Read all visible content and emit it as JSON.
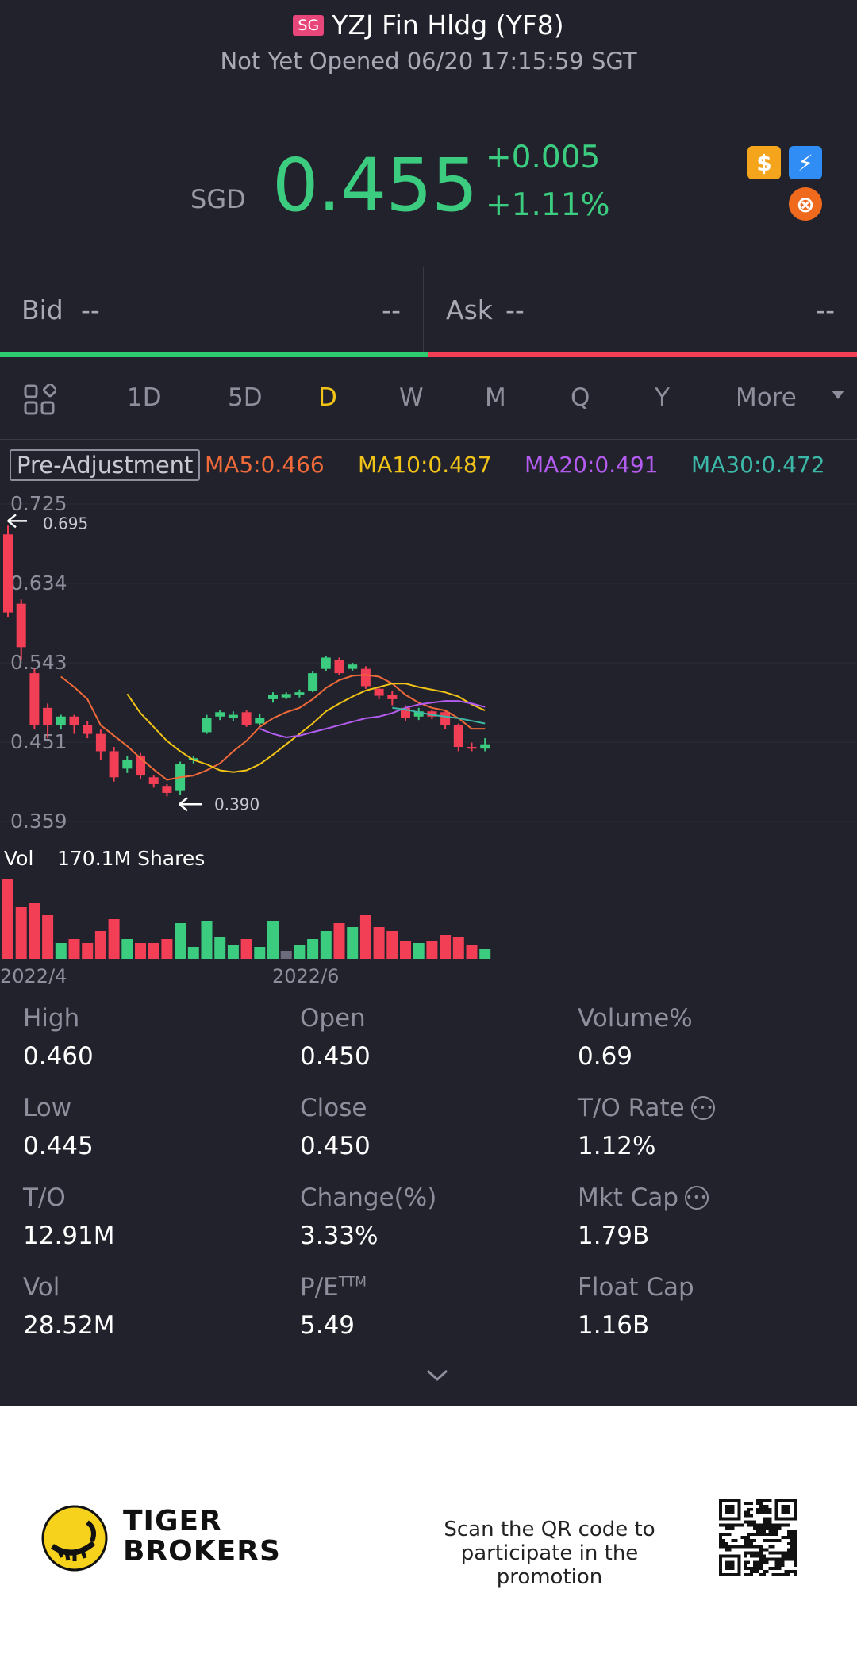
{
  "header": {
    "market_badge": "SG",
    "title": "YZJ Fin Hldg (YF8)",
    "status": "Not Yet Opened 06/20 17:15:59 SGT"
  },
  "quote": {
    "currency": "SGD",
    "price": "0.455",
    "change": "+0.005",
    "change_pct": "+1.11%",
    "up_color": "#3ccc7f",
    "down_color": "#f23f55"
  },
  "badges": {
    "dollar": "$",
    "flash": "⚡",
    "orange": "⊗"
  },
  "bidask": {
    "bid_label": "Bid",
    "bid_value": "--",
    "bid_size": "--",
    "ask_label": "Ask",
    "ask_value": "--",
    "ask_size": "--"
  },
  "periods": {
    "items": [
      "1D",
      "5D",
      "D",
      "W",
      "M",
      "Q",
      "Y",
      "More"
    ],
    "active": "D"
  },
  "indicators": {
    "adjustment": "Pre-Adjustment",
    "ma5": "MA5:0.466",
    "ma10": "MA10:0.487",
    "ma20": "MA20:0.491",
    "ma30": "MA30:0.472",
    "ma5_color": "#f06a3a",
    "ma10_color": "#f2c417",
    "ma20_color": "#b45cf0",
    "ma30_color": "#3cb8a8"
  },
  "chart_data": {
    "type": "candlestick",
    "y_ticks": [
      "0.725",
      "0.634",
      "0.543",
      "0.451",
      "0.359"
    ],
    "ylim": [
      0.359,
      0.725
    ],
    "high_marker": "0.695",
    "low_marker": "0.390",
    "x_labels": [
      "2022/4",
      "2022/6"
    ],
    "volume_label": "Vol",
    "volume_value": "170.1M Shares",
    "candles": [
      {
        "o": 0.69,
        "c": 0.6,
        "h": 0.7,
        "l": 0.595
      },
      {
        "o": 0.61,
        "c": 0.56,
        "h": 0.615,
        "l": 0.545
      },
      {
        "o": 0.53,
        "c": 0.47,
        "h": 0.535,
        "l": 0.465
      },
      {
        "o": 0.49,
        "c": 0.47,
        "h": 0.495,
        "l": 0.455
      },
      {
        "o": 0.47,
        "c": 0.48,
        "h": 0.482,
        "l": 0.465
      },
      {
        "o": 0.48,
        "c": 0.47,
        "h": 0.482,
        "l": 0.46
      },
      {
        "o": 0.47,
        "c": 0.46,
        "h": 0.475,
        "l": 0.455
      },
      {
        "o": 0.46,
        "c": 0.44,
        "h": 0.465,
        "l": 0.43
      },
      {
        "o": 0.44,
        "c": 0.41,
        "h": 0.445,
        "l": 0.405
      },
      {
        "o": 0.42,
        "c": 0.43,
        "h": 0.435,
        "l": 0.415
      },
      {
        "o": 0.435,
        "c": 0.412,
        "h": 0.438,
        "l": 0.408
      },
      {
        "o": 0.41,
        "c": 0.402,
        "h": 0.412,
        "l": 0.398
      },
      {
        "o": 0.4,
        "c": 0.392,
        "h": 0.402,
        "l": 0.388
      },
      {
        "o": 0.395,
        "c": 0.425,
        "h": 0.428,
        "l": 0.39
      },
      {
        "o": 0.43,
        "c": 0.432,
        "h": 0.434,
        "l": 0.426
      },
      {
        "o": 0.462,
        "c": 0.478,
        "h": 0.482,
        "l": 0.46
      },
      {
        "o": 0.48,
        "c": 0.485,
        "h": 0.487,
        "l": 0.476
      },
      {
        "o": 0.478,
        "c": 0.482,
        "h": 0.486,
        "l": 0.475
      },
      {
        "o": 0.485,
        "c": 0.47,
        "h": 0.487,
        "l": 0.468
      },
      {
        "o": 0.472,
        "c": 0.478,
        "h": 0.483,
        "l": 0.47
      },
      {
        "o": 0.5,
        "c": 0.505,
        "h": 0.508,
        "l": 0.496
      },
      {
        "o": 0.502,
        "c": 0.506,
        "h": 0.508,
        "l": 0.5
      },
      {
        "o": 0.505,
        "c": 0.508,
        "h": 0.511,
        "l": 0.502
      },
      {
        "o": 0.51,
        "c": 0.53,
        "h": 0.532,
        "l": 0.508
      },
      {
        "o": 0.535,
        "c": 0.548,
        "h": 0.55,
        "l": 0.532
      },
      {
        "o": 0.545,
        "c": 0.53,
        "h": 0.548,
        "l": 0.528
      },
      {
        "o": 0.535,
        "c": 0.54,
        "h": 0.542,
        "l": 0.533
      },
      {
        "o": 0.535,
        "c": 0.515,
        "h": 0.538,
        "l": 0.512
      },
      {
        "o": 0.512,
        "c": 0.504,
        "h": 0.515,
        "l": 0.5
      },
      {
        "o": 0.505,
        "c": 0.5,
        "h": 0.51,
        "l": 0.493
      },
      {
        "o": 0.49,
        "c": 0.478,
        "h": 0.493,
        "l": 0.475
      },
      {
        "o": 0.48,
        "c": 0.486,
        "h": 0.49,
        "l": 0.476
      },
      {
        "o": 0.486,
        "c": 0.48,
        "h": 0.488,
        "l": 0.477
      },
      {
        "o": 0.485,
        "c": 0.47,
        "h": 0.487,
        "l": 0.466
      },
      {
        "o": 0.47,
        "c": 0.445,
        "h": 0.472,
        "l": 0.44
      },
      {
        "o": 0.445,
        "c": 0.443,
        "h": 0.45,
        "l": 0.44
      },
      {
        "o": 0.443,
        "c": 0.448,
        "h": 0.455,
        "l": 0.44
      }
    ],
    "ma_lines": {
      "ma5": [
        null,
        null,
        null,
        null,
        0.526,
        0.514,
        0.5,
        0.47,
        0.458,
        0.446,
        0.432,
        0.419,
        0.407,
        0.41,
        0.412,
        0.418,
        0.426,
        0.44,
        0.452,
        0.468,
        0.478,
        0.485,
        0.49,
        0.5,
        0.513,
        0.522,
        0.527,
        0.528,
        0.526,
        0.518,
        0.505,
        0.496,
        0.49,
        0.487,
        0.478,
        0.466,
        0.466
      ],
      "ma10": [
        null,
        null,
        null,
        null,
        null,
        null,
        null,
        null,
        null,
        0.506,
        0.484,
        0.468,
        0.452,
        0.44,
        0.43,
        0.425,
        0.418,
        0.416,
        0.418,
        0.425,
        0.436,
        0.448,
        0.46,
        0.472,
        0.486,
        0.495,
        0.503,
        0.51,
        0.514,
        0.518,
        0.518,
        0.514,
        0.511,
        0.508,
        0.503,
        0.494,
        0.487
      ],
      "ma20": [
        null,
        null,
        null,
        null,
        null,
        null,
        null,
        null,
        null,
        null,
        null,
        null,
        null,
        null,
        null,
        null,
        null,
        null,
        null,
        0.466,
        0.46,
        0.456,
        0.458,
        0.462,
        0.466,
        0.47,
        0.474,
        0.478,
        0.48,
        0.484,
        0.49,
        0.494,
        0.496,
        0.498,
        0.498,
        0.495,
        0.491
      ],
      "ma30": [
        null,
        null,
        null,
        null,
        null,
        null,
        null,
        null,
        null,
        null,
        null,
        null,
        null,
        null,
        null,
        null,
        null,
        null,
        null,
        null,
        null,
        null,
        null,
        null,
        null,
        null,
        null,
        null,
        null,
        0.49,
        0.488,
        0.485,
        0.482,
        0.48,
        0.478,
        0.475,
        0.472
      ]
    },
    "volume": [
      1.0,
      0.65,
      0.7,
      0.55,
      0.2,
      0.25,
      0.2,
      0.35,
      0.5,
      0.25,
      0.2,
      0.2,
      0.25,
      0.45,
      0.15,
      0.48,
      0.28,
      0.18,
      0.25,
      0.15,
      0.48,
      0.1,
      0.18,
      0.25,
      0.35,
      0.45,
      0.4,
      0.55,
      0.4,
      0.35,
      0.22,
      0.2,
      0.22,
      0.3,
      0.28,
      0.18,
      0.12
    ],
    "volume_neutral_index": 21
  },
  "stats": {
    "high_label": "High",
    "high": "0.460",
    "open_label": "Open",
    "open": "0.450",
    "volpct_label": "Volume%",
    "volpct": "0.69",
    "low_label": "Low",
    "low": "0.445",
    "close_label": "Close",
    "close": "0.450",
    "torate_label": "T/O Rate",
    "torate": "1.12%",
    "to_label": "T/O",
    "to": "12.91M",
    "changepct_label": "Change(%)",
    "changepct": "3.33%",
    "mktcap_label": "Mkt Cap",
    "mktcap": "1.79B",
    "vol_label": "Vol",
    "vol": "28.52M",
    "pe_label": "P/E",
    "pe_sup": "TTM",
    "pe": "5.49",
    "floatcap_label": "Float Cap",
    "floatcap": "1.16B"
  },
  "footer": {
    "brand_line1": "TIGER",
    "brand_line2": "BROKERS",
    "promo_line1": "Scan the QR code to",
    "promo_line2": "participate in the promotion"
  }
}
